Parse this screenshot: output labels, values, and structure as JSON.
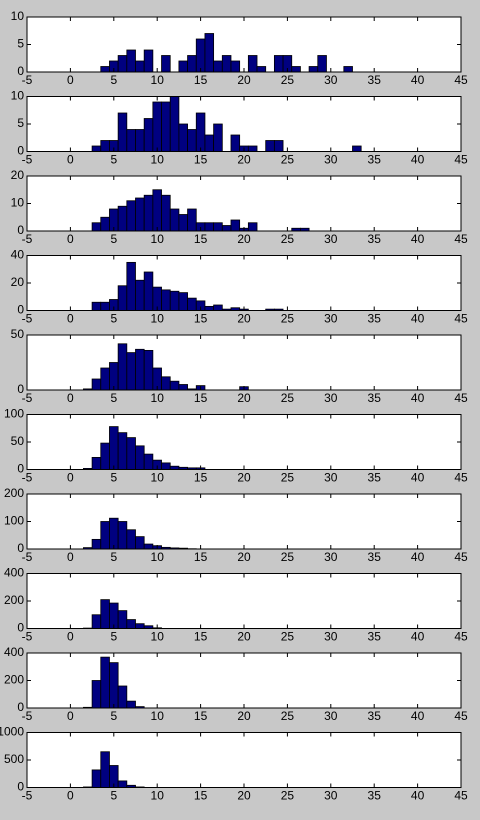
{
  "chart_data": [
    {
      "type": "histogram",
      "color": "#000080",
      "xlim": [
        -5,
        45
      ],
      "xticks": [
        -5,
        0,
        5,
        10,
        15,
        20,
        25,
        30,
        35,
        40,
        45
      ],
      "ylim": [
        0,
        10
      ],
      "yticks": [
        0,
        5,
        10
      ],
      "bins": [
        3.5,
        4.5,
        5.5,
        6.5,
        7.5,
        8.5,
        9.5,
        10.5,
        11.5,
        12.5,
        13.5,
        14.5,
        15.5,
        16.5,
        17.5,
        18.5,
        19.5,
        20.5,
        21.5,
        22.5,
        23.5,
        24.5,
        25.5,
        26.5,
        27.5,
        28.5,
        29.5,
        30.5,
        31.5,
        32.5
      ],
      "values": [
        1,
        2,
        3,
        4,
        2,
        4,
        0,
        3,
        0,
        2,
        3,
        6,
        7,
        2,
        3,
        2,
        0,
        3,
        1,
        0,
        3,
        3,
        1,
        0,
        1,
        3,
        0,
        0,
        1
      ]
    },
    {
      "type": "histogram",
      "color": "#000080",
      "xlim": [
        -5,
        45
      ],
      "xticks": [
        -5,
        0,
        5,
        10,
        15,
        20,
        25,
        30,
        35,
        40,
        45
      ],
      "ylim": [
        0,
        10
      ],
      "yticks": [
        0,
        5,
        10
      ],
      "bins": [
        2.5,
        3.5,
        4.5,
        5.5,
        6.5,
        7.5,
        8.5,
        9.5,
        10.5,
        11.5,
        12.5,
        13.5,
        14.5,
        15.5,
        16.5,
        17.5,
        18.5,
        19.5,
        20.5,
        21.5,
        22.5,
        23.5,
        24.5,
        25.5,
        26.5,
        27.5,
        28.5,
        29.5,
        30.5,
        31.5,
        32.5,
        33.5
      ],
      "values": [
        1,
        2,
        2,
        7,
        4,
        4,
        6,
        9,
        9,
        10,
        5,
        4,
        7,
        3,
        5,
        0,
        3,
        1,
        1,
        0,
        2,
        2,
        0,
        0,
        0,
        0,
        0,
        0,
        0,
        0,
        1
      ]
    },
    {
      "type": "histogram",
      "color": "#000080",
      "xlim": [
        -5,
        45
      ],
      "xticks": [
        -5,
        0,
        5,
        10,
        15,
        20,
        25,
        30,
        35,
        40,
        45
      ],
      "ylim": [
        0,
        20
      ],
      "yticks": [
        0,
        10,
        20
      ],
      "bins": [
        2.5,
        3.5,
        4.5,
        5.5,
        6.5,
        7.5,
        8.5,
        9.5,
        10.5,
        11.5,
        12.5,
        13.5,
        14.5,
        15.5,
        16.5,
        17.5,
        18.5,
        19.5,
        20.5,
        21.5,
        22.5,
        23.5,
        24.5,
        25.5,
        26.5,
        27.5
      ],
      "values": [
        3,
        5,
        8,
        9,
        11,
        12,
        13,
        15,
        13,
        8,
        6,
        8,
        3,
        3,
        3,
        2,
        4,
        1,
        3,
        0,
        0,
        0,
        0,
        1,
        1
      ]
    },
    {
      "type": "histogram",
      "color": "#000080",
      "xlim": [
        -5,
        45
      ],
      "xticks": [
        -5,
        0,
        5,
        10,
        15,
        20,
        25,
        30,
        35,
        40,
        45
      ],
      "ylim": [
        0,
        40
      ],
      "yticks": [
        0,
        20,
        40
      ],
      "bins": [
        2.5,
        3.5,
        4.5,
        5.5,
        6.5,
        7.5,
        8.5,
        9.5,
        10.5,
        11.5,
        12.5,
        13.5,
        14.5,
        15.5,
        16.5,
        17.5,
        18.5,
        19.5,
        20.5,
        21.5,
        22.5,
        23.5,
        24.5
      ],
      "values": [
        6,
        6,
        8,
        18,
        35,
        22,
        28,
        17,
        15,
        14,
        13,
        9,
        7,
        3,
        4,
        1,
        2,
        1,
        0,
        0,
        1,
        1
      ]
    },
    {
      "type": "histogram",
      "color": "#000080",
      "xlim": [
        -5,
        45
      ],
      "xticks": [
        -5,
        0,
        5,
        10,
        15,
        20,
        25,
        30,
        35,
        40,
        45
      ],
      "ylim": [
        0,
        50
      ],
      "yticks": [
        0,
        50
      ],
      "bins": [
        1.5,
        2.5,
        3.5,
        4.5,
        5.5,
        6.5,
        7.5,
        8.5,
        9.5,
        10.5,
        11.5,
        12.5,
        13.5,
        14.5,
        15.5,
        16.5,
        17.5,
        18.5,
        19.5,
        20.5
      ],
      "values": [
        1,
        10,
        20,
        25,
        42,
        34,
        37,
        36,
        20,
        12,
        8,
        5,
        1,
        4,
        0,
        0,
        0,
        0,
        3
      ]
    },
    {
      "type": "histogram",
      "color": "#000080",
      "xlim": [
        -5,
        45
      ],
      "xticks": [
        -5,
        0,
        5,
        10,
        15,
        20,
        25,
        30,
        35,
        40,
        45
      ],
      "ylim": [
        0,
        100
      ],
      "yticks": [
        0,
        50,
        100
      ],
      "bins": [
        1.5,
        2.5,
        3.5,
        4.5,
        5.5,
        6.5,
        7.5,
        8.5,
        9.5,
        10.5,
        11.5,
        12.5,
        13.5,
        14.5,
        15.5
      ],
      "values": [
        2,
        22,
        48,
        78,
        67,
        58,
        43,
        28,
        17,
        12,
        6,
        4,
        3,
        3
      ]
    },
    {
      "type": "histogram",
      "color": "#000080",
      "xlim": [
        -5,
        45
      ],
      "xticks": [
        -5,
        0,
        5,
        10,
        15,
        20,
        25,
        30,
        35,
        40,
        45
      ],
      "ylim": [
        0,
        200
      ],
      "yticks": [
        0,
        100,
        200
      ],
      "bins": [
        1.5,
        2.5,
        3.5,
        4.5,
        5.5,
        6.5,
        7.5,
        8.5,
        9.5,
        10.5,
        11.5,
        12.5,
        13.5,
        14.5
      ],
      "values": [
        5,
        35,
        100,
        112,
        100,
        70,
        45,
        18,
        12,
        6,
        4,
        3,
        1
      ]
    },
    {
      "type": "histogram",
      "color": "#000080",
      "xlim": [
        -5,
        45
      ],
      "xticks": [
        -5,
        0,
        5,
        10,
        15,
        20,
        25,
        30,
        35,
        40,
        45
      ],
      "ylim": [
        0,
        400
      ],
      "yticks": [
        0,
        200,
        400
      ],
      "bins": [
        1.5,
        2.5,
        3.5,
        4.5,
        5.5,
        6.5,
        7.5,
        8.5,
        9.5,
        10.5
      ],
      "values": [
        3,
        100,
        210,
        185,
        130,
        65,
        35,
        20,
        5
      ]
    },
    {
      "type": "histogram",
      "color": "#000080",
      "xlim": [
        -5,
        45
      ],
      "xticks": [
        -5,
        0,
        5,
        10,
        15,
        20,
        25,
        30,
        35,
        40,
        45
      ],
      "ylim": [
        0,
        400
      ],
      "yticks": [
        0,
        200,
        400
      ],
      "bins": [
        1.5,
        2.5,
        3.5,
        4.5,
        5.5,
        6.5,
        7.5,
        8.5
      ],
      "values": [
        5,
        200,
        370,
        330,
        160,
        50,
        10
      ]
    },
    {
      "type": "histogram",
      "color": "#000080",
      "xlim": [
        -5,
        45
      ],
      "xticks": [
        -5,
        0,
        5,
        10,
        15,
        20,
        25,
        30,
        35,
        40,
        45
      ],
      "ylim": [
        0,
        1000
      ],
      "yticks": [
        0,
        500,
        1000
      ],
      "bins": [
        1.5,
        2.5,
        3.5,
        4.5,
        5.5,
        6.5,
        7.5,
        8.5
      ],
      "values": [
        10,
        320,
        650,
        400,
        120,
        40,
        10
      ]
    }
  ]
}
